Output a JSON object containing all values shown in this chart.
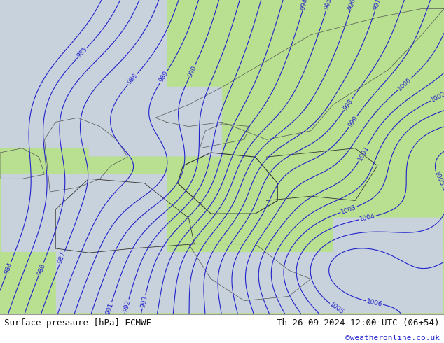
{
  "title_left": "Surface pressure [hPa] ECMWF",
  "title_right": "Th 26-09-2024 12:00 UTC (06+54)",
  "credit": "©weatheronline.co.uk",
  "sea_color": "#d0d8e0",
  "land_color": "#b8e090",
  "contour_color_blue": "#2222cc",
  "contour_color_black": "#111111",
  "contour_color_red": "#cc2222",
  "label_color": "#2222cc",
  "footer_bg": "#ffffff",
  "footer_text_color": "#111111",
  "credit_color": "#2222cc",
  "figsize": [
    6.34,
    4.9
  ],
  "dpi": 100,
  "coast_color": "#555555",
  "border_color": "#333333"
}
